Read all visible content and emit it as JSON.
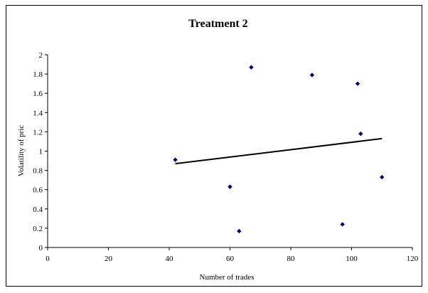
{
  "chart_data": {
    "type": "scatter",
    "title": "Treatment 2",
    "xlabel": "Number of trades",
    "ylabel": "Volatility of pric",
    "xlim": [
      0,
      120
    ],
    "ylim": [
      0,
      2
    ],
    "x_ticks": [
      0,
      20,
      40,
      60,
      80,
      100,
      120
    ],
    "y_ticks": [
      0,
      0.2,
      0.4,
      0.6,
      0.8,
      1,
      1.2,
      1.4,
      1.6,
      1.8,
      2
    ],
    "grid": false,
    "legend": "none",
    "marker_color": "#000080",
    "trendline_color": "#000000",
    "points": [
      {
        "x": 42,
        "y": 0.91
      },
      {
        "x": 60,
        "y": 0.63
      },
      {
        "x": 63,
        "y": 0.17
      },
      {
        "x": 67,
        "y": 1.87
      },
      {
        "x": 87,
        "y": 1.79
      },
      {
        "x": 97,
        "y": 0.24
      },
      {
        "x": 102,
        "y": 1.7
      },
      {
        "x": 103,
        "y": 1.18
      },
      {
        "x": 110,
        "y": 0.73
      }
    ],
    "trendline": {
      "x": [
        42,
        110
      ],
      "y": [
        0.87,
        1.13
      ]
    }
  }
}
